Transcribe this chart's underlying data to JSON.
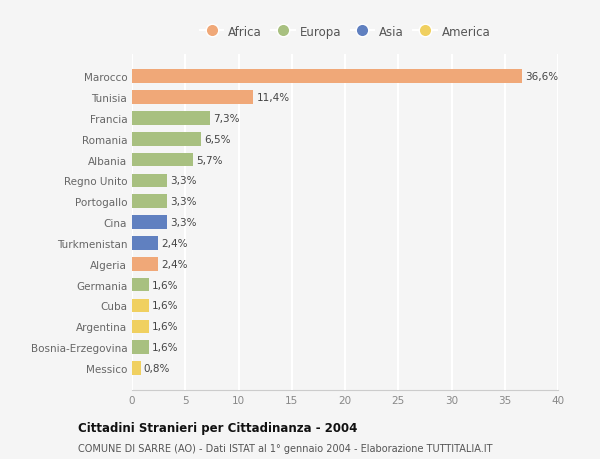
{
  "countries": [
    "Marocco",
    "Tunisia",
    "Francia",
    "Romania",
    "Albania",
    "Regno Unito",
    "Portogallo",
    "Cina",
    "Turkmenistan",
    "Algeria",
    "Germania",
    "Cuba",
    "Argentina",
    "Bosnia-Erzegovina",
    "Messico"
  ],
  "values": [
    36.6,
    11.4,
    7.3,
    6.5,
    5.7,
    3.3,
    3.3,
    3.3,
    2.4,
    2.4,
    1.6,
    1.6,
    1.6,
    1.6,
    0.8
  ],
  "labels": [
    "36,6%",
    "11,4%",
    "7,3%",
    "6,5%",
    "5,7%",
    "3,3%",
    "3,3%",
    "3,3%",
    "2,4%",
    "2,4%",
    "1,6%",
    "1,6%",
    "1,6%",
    "1,6%",
    "0,8%"
  ],
  "continents": [
    "Africa",
    "Africa",
    "Europa",
    "Europa",
    "Europa",
    "Europa",
    "Europa",
    "Asia",
    "Asia",
    "Africa",
    "Europa",
    "America",
    "America",
    "Europa",
    "America"
  ],
  "colors": {
    "Africa": "#F0A878",
    "Europa": "#A8C080",
    "Asia": "#6080C0",
    "America": "#F0D060"
  },
  "legend_order": [
    "Africa",
    "Europa",
    "Asia",
    "America"
  ],
  "title": "Cittadini Stranieri per Cittadinanza - 2004",
  "subtitle": "COMUNE DI SARRE (AO) - Dati ISTAT al 1° gennaio 2004 - Elaborazione TUTTITALIA.IT",
  "xlim": [
    0,
    40
  ],
  "xticks": [
    0,
    5,
    10,
    15,
    20,
    25,
    30,
    35,
    40
  ],
  "background_color": "#f5f5f5",
  "grid_color": "#ffffff",
  "bar_height": 0.65
}
